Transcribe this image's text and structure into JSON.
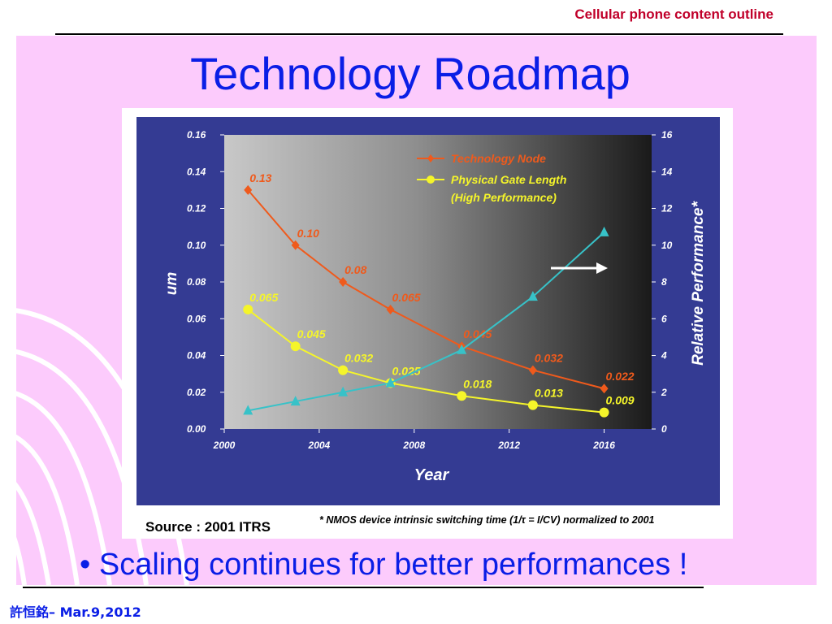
{
  "header": {
    "text": "Cellular phone content outline"
  },
  "title": "Technology Roadmap",
  "bullet": "Scaling continues for better performances !",
  "footer": "許恒銘– Mar.9,2012",
  "source": "Source : 2001 ITRS",
  "footnote": "* NMOS device intrinsic switching time (1/τ = I/CV) normalized to 2001",
  "colors": {
    "title": "#0a1ee6",
    "header": "#c0002a",
    "slide_bg": "#fccbfc",
    "chart_frame": "#343b93"
  },
  "chart_data": {
    "type": "line",
    "xlabel": "Year",
    "ylabel": "um",
    "y2label": "Relative Performance*",
    "xlim": [
      2000,
      2018
    ],
    "xticks": [
      "2000",
      "2004",
      "2008",
      "2012",
      "2016"
    ],
    "ylim": [
      0,
      0.16
    ],
    "yticks": [
      "0.00",
      "0.02",
      "0.04",
      "0.06",
      "0.08",
      "0.10",
      "0.12",
      "0.14",
      "0.16"
    ],
    "y2lim": [
      0,
      16
    ],
    "y2ticks": [
      "0",
      "2",
      "4",
      "6",
      "8",
      "10",
      "12",
      "14",
      "16"
    ],
    "legend_position": "top-right",
    "series": [
      {
        "name": "Technology Node",
        "color": "#ef5a1c",
        "axis": "left",
        "marker": "diamond",
        "x": [
          2001,
          2003,
          2005,
          2007,
          2010,
          2013,
          2016
        ],
        "values": [
          0.13,
          0.1,
          0.08,
          0.065,
          0.045,
          0.032,
          0.022
        ],
        "labels": [
          "0.13",
          "0.10",
          "0.08",
          "0.065",
          "0.045",
          "0.032",
          "0.022"
        ]
      },
      {
        "name": "Physical Gate Length\n(High Performance)",
        "color": "#f5f52a",
        "axis": "left",
        "marker": "circle",
        "x": [
          2001,
          2003,
          2005,
          2007,
          2010,
          2013,
          2016
        ],
        "values": [
          0.065,
          0.045,
          0.032,
          0.025,
          0.018,
          0.013,
          0.009
        ],
        "labels": [
          "0.065",
          "0.045",
          "0.032",
          "0.025",
          "0.018",
          "0.013",
          "0.009"
        ]
      },
      {
        "color": "#37c2c8",
        "axis": "right",
        "marker": "triangle",
        "x": [
          2001,
          2003,
          2005,
          2007,
          2010,
          2013,
          2016
        ],
        "values": [
          1.0,
          1.5,
          2.0,
          2.5,
          4.3,
          7.2,
          10.7
        ]
      }
    ]
  }
}
